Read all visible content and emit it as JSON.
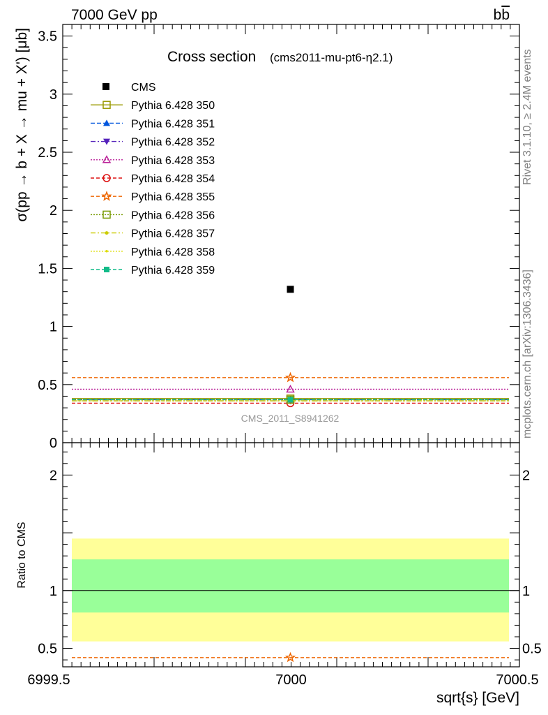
{
  "header": {
    "left": "7000 GeV pp",
    "right_main": "b",
    "right_bar": "b"
  },
  "side_text": {
    "rivet": "Rivet 3.1.10, ≥ 2.4M events",
    "mcplots": "mcplots.cern.ch [arXiv:1306.3436]"
  },
  "chart_data": [
    {
      "type": "scatter",
      "title": "Cross section",
      "subtitle": "(cms2011-mu-pt6-η2.1)",
      "ylabel": "σ(pp → b + X → mu + X') [μb]",
      "watermark": "CMS_2011_S8941262",
      "xlim": [
        6999.5,
        7000.5
      ],
      "ylim": [
        0,
        3.6
      ],
      "yticks": [
        "0",
        "0.5",
        "1",
        "1.5",
        "2",
        "2.5",
        "3",
        "3.5"
      ],
      "legend_position": "top-left",
      "data": {
        "name": "CMS",
        "x": 7000,
        "y": 1.32,
        "color": "#000000"
      },
      "series": [
        {
          "name": "Pythia 6.428 350",
          "y": 0.38,
          "color": "#999900",
          "marker": "square-open",
          "dash": "solid"
        },
        {
          "name": "Pythia 6.428 351",
          "y": 0.37,
          "color": "#0055dd",
          "marker": "triangle-up",
          "dash": "6,3"
        },
        {
          "name": "Pythia 6.428 352",
          "y": 0.36,
          "color": "#5522bb",
          "marker": "triangle-down",
          "dash": "7,3,2,3"
        },
        {
          "name": "Pythia 6.428 353",
          "y": 0.46,
          "color": "#bb2299",
          "marker": "triangle-open",
          "dash": "2,2"
        },
        {
          "name": "Pythia 6.428 354",
          "y": 0.34,
          "color": "#dd1111",
          "marker": "circle-open",
          "dash": "5,3"
        },
        {
          "name": "Pythia 6.428 355",
          "y": 0.56,
          "color": "#ee6600",
          "marker": "star",
          "dash": "5,3"
        },
        {
          "name": "Pythia 6.428 356",
          "y": 0.37,
          "color": "#779900",
          "marker": "square-open",
          "dash": "2,2"
        },
        {
          "name": "Pythia 6.428 357",
          "y": 0.36,
          "color": "#cccc00",
          "marker": "dot",
          "dash": "7,3,2,3"
        },
        {
          "name": "Pythia 6.428 358",
          "y": 0.36,
          "color": "#dddd00",
          "marker": "dot-small",
          "dash": "2,2"
        },
        {
          "name": "Pythia 6.428 359",
          "y": 0.37,
          "color": "#11bb88",
          "marker": "square",
          "dash": "5,3"
        }
      ]
    },
    {
      "type": "scatter",
      "ylabel": "Ratio to CMS",
      "xlabel": "sqrt{s} [GeV]",
      "xlim": [
        6999.5,
        7000.5
      ],
      "ylim": [
        0.34,
        2.28
      ],
      "xticks": [
        "6999.5",
        "7000",
        "7000.5"
      ],
      "yticks": [
        "0.5",
        "1",
        "2"
      ],
      "bands": {
        "outer": [
          0.56,
          1.45
        ],
        "inner": [
          0.81,
          1.27
        ],
        "outer_color": "#ffff99",
        "inner_color": "#99ff99"
      },
      "reference": 1,
      "visible_series": [
        {
          "name": "Pythia 6.428 355",
          "y": 0.42,
          "color": "#ee6600"
        }
      ]
    }
  ]
}
